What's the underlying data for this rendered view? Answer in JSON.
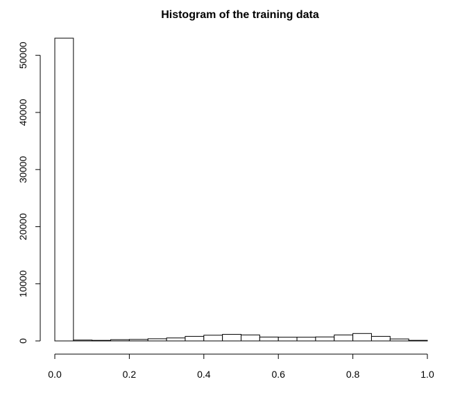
{
  "chart_data": {
    "type": "bar",
    "title": "Histogram of the training data",
    "xlabel": "",
    "ylabel": "",
    "x_range": [
      0,
      1
    ],
    "bins": [
      [
        0.0,
        0.05
      ],
      [
        0.05,
        0.1
      ],
      [
        0.1,
        0.15
      ],
      [
        0.15,
        0.2
      ],
      [
        0.2,
        0.25
      ],
      [
        0.25,
        0.3
      ],
      [
        0.3,
        0.35
      ],
      [
        0.35,
        0.4
      ],
      [
        0.4,
        0.45
      ],
      [
        0.45,
        0.5
      ],
      [
        0.5,
        0.55
      ],
      [
        0.55,
        0.6
      ],
      [
        0.6,
        0.65
      ],
      [
        0.65,
        0.7
      ],
      [
        0.7,
        0.75
      ],
      [
        0.75,
        0.8
      ],
      [
        0.8,
        0.85
      ],
      [
        0.85,
        0.9
      ],
      [
        0.9,
        0.95
      ],
      [
        0.95,
        1.0
      ]
    ],
    "values": [
      53000,
      150,
      100,
      220,
      260,
      380,
      520,
      800,
      1000,
      1150,
      1050,
      680,
      650,
      650,
      700,
      1050,
      1300,
      800,
      350,
      100
    ],
    "xticks": [
      "0.0",
      "0.2",
      "0.4",
      "0.6",
      "0.8",
      "1.0"
    ],
    "yticks": [
      "0",
      "10000",
      "20000",
      "30000",
      "40000",
      "50000"
    ],
    "ylim": [
      0,
      53000
    ],
    "grid": false,
    "legend": "none"
  }
}
